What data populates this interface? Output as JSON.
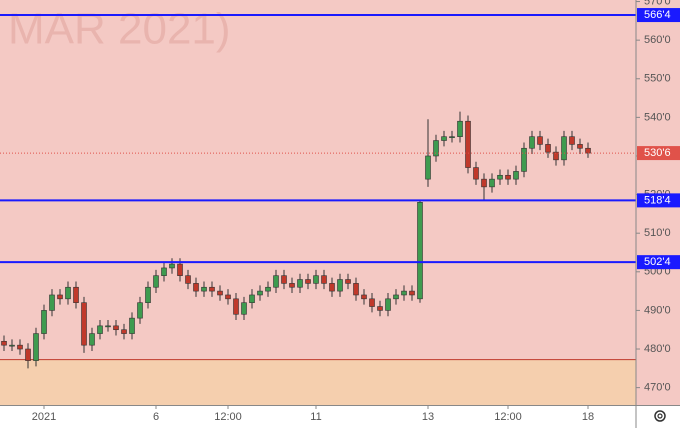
{
  "chart_data": {
    "type": "candlestick",
    "watermark": "MAR 2021)",
    "categories": [
      null,
      null,
      null,
      null,
      null,
      "2021",
      null,
      null,
      null,
      null,
      null,
      null,
      null,
      null,
      null,
      null,
      null,
      null,
      null,
      "6",
      null,
      null,
      null,
      null,
      null,
      null,
      null,
      null,
      "12:00",
      null,
      null,
      null,
      null,
      null,
      null,
      null,
      null,
      null,
      null,
      "11",
      null,
      null,
      null,
      null,
      null,
      null,
      null,
      null,
      null,
      null,
      null,
      null,
      null,
      "13",
      null,
      null,
      null,
      null,
      null,
      null,
      null,
      null,
      null,
      "12:00",
      null,
      null,
      null,
      null,
      null,
      null,
      null,
      null,
      null,
      "18"
    ],
    "open": [
      482,
      481,
      481,
      480,
      477,
      484,
      490,
      494,
      493,
      496,
      492,
      481,
      484,
      486,
      486,
      485,
      484,
      488,
      492,
      496,
      499,
      501,
      502,
      499,
      497,
      495,
      496,
      495,
      494,
      493,
      489,
      492,
      494,
      495,
      496,
      499,
      497,
      496,
      498,
      497,
      499,
      497,
      495,
      498,
      497,
      494,
      493,
      491,
      490,
      493,
      494,
      495,
      493,
      524,
      530,
      534,
      535,
      535,
      539,
      527,
      524,
      522,
      524,
      525,
      524,
      526,
      532,
      535,
      533,
      531,
      529,
      535,
      533,
      532
    ],
    "high": [
      483.5,
      482.5,
      482.5,
      481.5,
      485.5,
      491.5,
      495.5,
      495.5,
      497.5,
      497.5,
      493.5,
      485.5,
      487.5,
      487.5,
      487.5,
      486.5,
      489.5,
      493.5,
      497.5,
      500.5,
      502.5,
      503.5,
      503.5,
      500.5,
      498.5,
      497.5,
      497.5,
      496.5,
      495.5,
      494.5,
      493.5,
      495.5,
      496.5,
      497.5,
      500.5,
      500.5,
      498.5,
      499.5,
      499.5,
      500.5,
      500.5,
      498.5,
      499.5,
      499.5,
      498.5,
      495.5,
      494.5,
      492.5,
      494.5,
      495.5,
      496.5,
      496.5,
      518.5,
      539.5,
      535.5,
      536.5,
      536.5,
      541.5,
      540.5,
      528.5,
      525.5,
      525.5,
      526.5,
      526.5,
      527.5,
      533.5,
      536.5,
      536.5,
      534.5,
      532.5,
      536.5,
      536.5,
      534.5,
      533.5
    ],
    "low": [
      479.5,
      479.5,
      478.5,
      475,
      475.5,
      482.5,
      488.5,
      491.5,
      491.5,
      490.5,
      479,
      479.5,
      482.5,
      484.5,
      483.5,
      482.5,
      482.5,
      486.5,
      490.5,
      494.5,
      497.5,
      499.5,
      497.5,
      495.5,
      493.5,
      493.5,
      493.5,
      492.5,
      491.5,
      487.5,
      487.5,
      490.5,
      492.5,
      493.5,
      494.5,
      495.5,
      494.5,
      494.5,
      495.5,
      495.5,
      495.5,
      493.5,
      493.5,
      495.5,
      492.5,
      491.5,
      489.5,
      488.5,
      488.5,
      491.5,
      492.5,
      492.5,
      492,
      522,
      528.5,
      532.5,
      533.5,
      533.5,
      525.5,
      522.5,
      518.5,
      520.5,
      522.5,
      522.5,
      522.5,
      524.5,
      530.5,
      531.5,
      529.5,
      527.5,
      527.5,
      531.5,
      530.5,
      529.5
    ],
    "close": [
      481,
      481,
      480,
      477,
      484,
      490,
      494,
      493,
      496,
      492,
      481,
      484,
      486,
      486,
      485,
      484,
      488,
      492,
      496,
      499,
      501,
      502,
      499,
      497,
      495,
      496,
      495,
      494,
      493,
      489,
      492,
      494,
      495,
      496,
      499,
      497,
      496,
      498,
      497,
      499,
      497,
      495,
      498,
      497,
      494,
      493,
      491,
      490,
      493,
      494,
      495,
      494,
      518,
      530,
      534,
      535,
      535,
      539,
      527,
      524,
      522,
      524,
      525,
      524,
      526,
      532,
      535,
      533,
      531,
      529,
      535,
      533,
      532,
      530.75
    ],
    "up_color": "#3e9b4f",
    "down_color": "#c0392b",
    "ylim": [
      465.5,
      570.4
    ],
    "yticks": [
      {
        "value": 470,
        "label": "470'0"
      },
      {
        "value": 480,
        "label": "480'0"
      },
      {
        "value": 490,
        "label": "490'0"
      },
      {
        "value": 500,
        "label": "500'0"
      },
      {
        "value": 510,
        "label": "510'0"
      },
      {
        "value": 520,
        "label": "520'0"
      },
      {
        "value": 530,
        "label": "530'0"
      },
      {
        "value": 540,
        "label": "540'0"
      },
      {
        "value": 550,
        "label": "550'0"
      },
      {
        "value": 560,
        "label": "560'0"
      },
      {
        "value": 570,
        "label": "570'0"
      }
    ],
    "levels": [
      {
        "value": 566.5,
        "label": "566'4"
      },
      {
        "value": 518.5,
        "label": "518'4"
      },
      {
        "value": 502.5,
        "label": "502'4"
      }
    ],
    "level_color": "#1a1aff",
    "last_price": {
      "value": 530.75,
      "label": "530'6"
    },
    "last_price_color": "#e0524a",
    "zone_top": 477.25,
    "zone_color": "#c0392b"
  }
}
